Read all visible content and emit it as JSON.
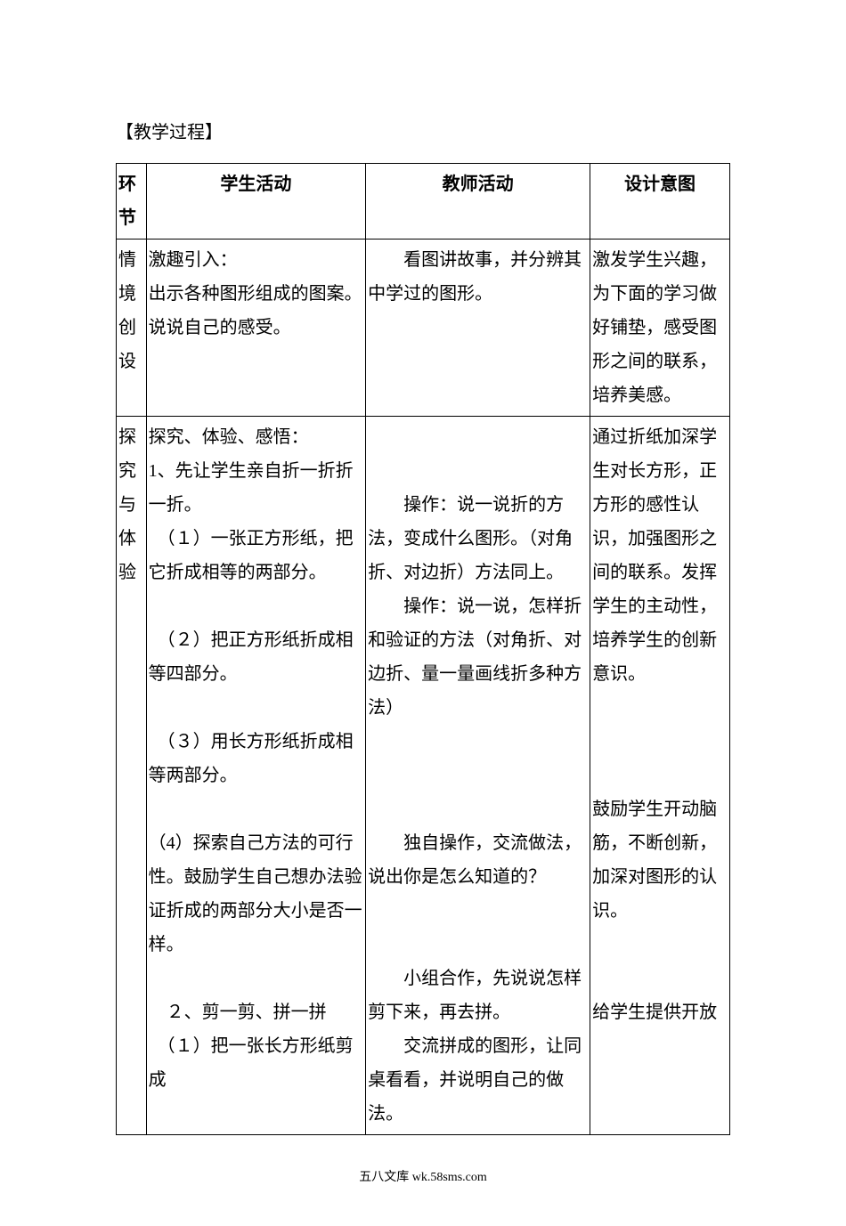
{
  "sectionTitle": "【教学过程】",
  "headers": {
    "col1": "环节",
    "col2": "学生活动",
    "col3": "教师活动",
    "col4": "设计意图"
  },
  "rows": {
    "row1": {
      "col1": "情境创设",
      "col2": "激趣引入：\n出示各种图形组成的图案。说说自己的感受。",
      "col3": "　　看图讲故事，并分辨其中学过的图形。",
      "col4": "激发学生兴趣，为下面的学习做好铺垫，感受图形之间的联系，培养美感。"
    },
    "row2": {
      "col1": "探究与体验",
      "col2": "探究、体验、感悟：\n1、先让学生亲自折一折折一折。\n　（１）一张正方形纸，把它折成相等的两部分。\n\n　（２）把正方形纸折成相等四部分。\n\n　（３）用长方形纸折成相等两部分。\n\n（4）探索自己方法的可行性。鼓励学生自己想办法验证折成的两部分大小是否一样。\n\n　２、剪一剪、拼一拼\n　（１）把一张长方形纸剪成",
      "col3": "\n\n　　操作：说一说折的方法，变成什么图形。（对角折、对边折）方法同上。\n　　操作：说一说，怎样折和验证的方法（对角折、对边折、量一量画线折多种方法）\n\n\n\n　　独自操作，交流做法，说出你是怎么知道的？\n\n\n　　小组合作，先说说怎样剪下来，再去拼。\n　　交流拼成的图形，让同桌看看，并说明自己的做法。",
      "col4": "通过折纸加深学生对长方形，正方形的感性认识，加强图形之间的联系。发挥学生的主动性，培养学生的创新意识。\n\n\n\n鼓励学生开动脑筋，不断创新，加深对图形的认识。\n\n\n给学生提供开放"
    }
  },
  "footer": "五八文库 wk.58sms.com"
}
